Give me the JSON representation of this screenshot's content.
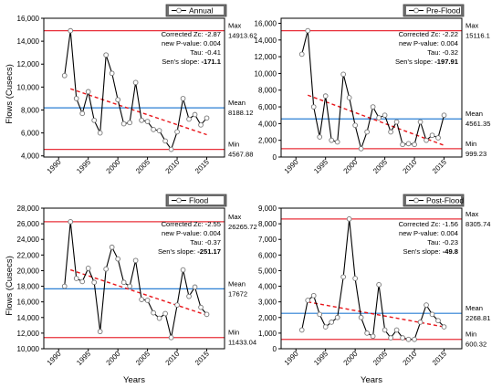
{
  "figure": {
    "xlabel_shared": "Years",
    "ylabel_left": "Flows (Cusecs)"
  },
  "chart_data": [
    {
      "type": "line",
      "legend": "Annual",
      "title": "",
      "xlabel": "",
      "ylabel": "Flows (Cusecs)",
      "x": [
        1991,
        1992,
        1993,
        1994,
        1995,
        1996,
        1997,
        1998,
        1999,
        2000,
        2001,
        2002,
        2003,
        2004,
        2005,
        2006,
        2007,
        2008,
        2009,
        2010,
        2011,
        2012,
        2013,
        2014,
        2015
      ],
      "values": [
        11000,
        14913.62,
        9000,
        7700,
        9600,
        7100,
        6000,
        12800,
        11200,
        8900,
        6800,
        6900,
        10400,
        7100,
        7000,
        6300,
        6200,
        5300,
        4567.88,
        6100,
        9000,
        7200,
        7600,
        6700,
        7300
      ],
      "xlim": [
        1987.5,
        2018
      ],
      "ylim": [
        3900,
        16000
      ],
      "yticks": [
        4000,
        6000,
        8000,
        10000,
        12000,
        14000,
        16000
      ],
      "yticklabels": [
        "4,000",
        "6,000",
        "8,000",
        "10,000",
        "12,000",
        "14,000",
        "16,000"
      ],
      "xticks": [
        1990,
        1995,
        2000,
        2005,
        2010,
        2015
      ],
      "max": 14913.62,
      "mean": 8188.12,
      "min": 4567.88,
      "max_label": "Max",
      "max_value": "14913.62",
      "mean_label": "Mean",
      "mean_value": "8188.12",
      "min_label": "Min",
      "min_value": "4567.88",
      "trend": {
        "x0": 1992,
        "y0": 9850,
        "x1": 2015,
        "y1": 5850
      },
      "stats": {
        "line1": "Corrected Zc: -2.87",
        "line2": "new P-value: 0.004",
        "line3": "Tau: -0.41",
        "line4_prefix": "Sen's slope: ",
        "line4_value": "-171.1"
      }
    },
    {
      "type": "line",
      "legend": "Pre-Flood",
      "title": "",
      "xlabel": "",
      "ylabel": "",
      "x": [
        1991,
        1992,
        1993,
        1994,
        1995,
        1996,
        1997,
        1998,
        1999,
        2000,
        2001,
        2002,
        2003,
        2004,
        2005,
        2006,
        2007,
        2008,
        2009,
        2010,
        2011,
        2012,
        2013,
        2014,
        2015
      ],
      "values": [
        12300,
        15116.1,
        6000,
        2400,
        7300,
        2000,
        1800,
        9900,
        7100,
        3800,
        999.23,
        3000,
        6000,
        4700,
        5000,
        3000,
        4200,
        1500,
        1600,
        1500,
        4200,
        2000,
        2600,
        2300,
        5000
      ],
      "xlim": [
        1987.5,
        2018
      ],
      "ylim": [
        0,
        16600
      ],
      "yticks": [
        0,
        2000,
        4000,
        6000,
        8000,
        10000,
        12000,
        14000,
        16000
      ],
      "yticklabels": [
        "0",
        "2,000",
        "4,000",
        "6,000",
        "8,000",
        "10,000",
        "12,000",
        "14,000",
        "16,000"
      ],
      "xticks": [
        1990,
        1995,
        2000,
        2005,
        2010,
        2015
      ],
      "max": 15116.1,
      "mean": 4561.35,
      "min": 999.23,
      "max_label": "Max",
      "max_value": "15116.1",
      "mean_label": "Mean",
      "mean_value": "4561.35",
      "min_label": "Min",
      "min_value": "999.23",
      "trend": {
        "x0": 1992,
        "y0": 7400,
        "x1": 2015,
        "y1": 1400
      },
      "stats": {
        "line1": "Corrected Zc: -2.22",
        "line2": "new P-value: 0.004",
        "line3": "Tau: -0.32",
        "line4_prefix": "Sen's slope: ",
        "line4_value": "-197.91"
      }
    },
    {
      "type": "line",
      "legend": "Flood",
      "title": "",
      "xlabel": "Years",
      "ylabel": "Flows (Cusecs)",
      "x": [
        1991,
        1992,
        1993,
        1994,
        1995,
        1996,
        1997,
        1998,
        1999,
        2000,
        2001,
        2002,
        2003,
        2004,
        2005,
        2006,
        2007,
        2008,
        2009,
        2010,
        2011,
        2012,
        2013,
        2014,
        2015
      ],
      "values": [
        18000,
        26265.72,
        19000,
        18600,
        20300,
        18500,
        12200,
        20200,
        23000,
        21500,
        18500,
        18000,
        21300,
        16300,
        16200,
        14600,
        13900,
        14500,
        11433.04,
        15600,
        20100,
        16700,
        17900,
        15300,
        14400
      ],
      "xlim": [
        1987.5,
        2018
      ],
      "ylim": [
        10000,
        28000
      ],
      "yticks": [
        10000,
        12000,
        14000,
        16000,
        18000,
        20000,
        22000,
        24000,
        26000,
        28000
      ],
      "yticklabels": [
        "10,000",
        "12,000",
        "14,000",
        "16,000",
        "18,000",
        "20,000",
        "22,000",
        "24,000",
        "26,000",
        "28,000"
      ],
      "xticks": [
        1990,
        1995,
        2000,
        2005,
        2010,
        2015
      ],
      "max": 26265.72,
      "mean": 17672,
      "min": 11433.04,
      "max_label": "Max",
      "max_value": "26265.72",
      "mean_label": "Mean",
      "mean_value": "17672",
      "min_label": "Min",
      "min_value": "11433.04",
      "trend": {
        "x0": 1992,
        "y0": 20100,
        "x1": 2015,
        "y1": 14300
      },
      "stats": {
        "line1": "Corrected Zc: -2.55",
        "line2": "new P-value: 0.004",
        "line3": "Tau: -0.37",
        "line4_prefix": "Sen's slope: ",
        "line4_value": "-251.17"
      }
    },
    {
      "type": "line",
      "legend": "Post-Flood",
      "title": "",
      "xlabel": "Years",
      "ylabel": "",
      "x": [
        1991,
        1992,
        1993,
        1994,
        1995,
        1996,
        1997,
        1998,
        1999,
        2000,
        2001,
        2002,
        2003,
        2004,
        2005,
        2006,
        2007,
        2008,
        2009,
        2010,
        2011,
        2012,
        2013,
        2014,
        2015
      ],
      "values": [
        1200,
        3100,
        3400,
        2200,
        1400,
        1700,
        2000,
        4600,
        8305.74,
        4500,
        2000,
        1000,
        800,
        4100,
        1200,
        700,
        1200,
        700,
        600.32,
        600,
        1700,
        2800,
        2200,
        1800,
        1400
      ],
      "xlim": [
        1987.5,
        2018
      ],
      "ylim": [
        0,
        9000
      ],
      "yticks": [
        0,
        1000,
        2000,
        3000,
        4000,
        5000,
        6000,
        7000,
        8000,
        9000
      ],
      "yticklabels": [
        "0",
        "1,000",
        "2,000",
        "3,000",
        "4,000",
        "5,000",
        "6,000",
        "7,000",
        "8,000",
        "9,000"
      ],
      "xticks": [
        1990,
        1995,
        2000,
        2005,
        2010,
        2015
      ],
      "max": 8305.74,
      "mean": 2268.81,
      "min": 600.32,
      "max_label": "Max",
      "max_value": "8305.74",
      "mean_label": "Mean",
      "mean_value": "2268.81",
      "min_label": "Min",
      "min_value": "600.32",
      "trend": {
        "x0": 1992,
        "y0": 3000,
        "x1": 2015,
        "y1": 1400
      },
      "stats": {
        "line1": "Corrected Zc: -1.56",
        "line2": "new P-value: 0.004",
        "line3": "Tau: -0.23",
        "line4_prefix": "Sen's slope: ",
        "line4_value": "-49.8"
      }
    }
  ],
  "colors": {
    "series": "#000000",
    "marker_fill": "#ffffff",
    "max_line": "#e8303a",
    "min_line": "#e8303a",
    "mean_line": "#2a7fd4",
    "trend": "#e8161b",
    "legend_bg": "#6f6f6f"
  }
}
